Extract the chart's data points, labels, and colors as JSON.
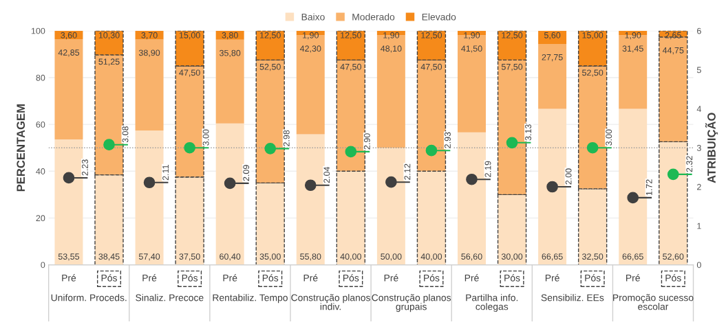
{
  "chart_data": {
    "type": "bar",
    "stacked": true,
    "categories": [
      "Pré",
      "Pós",
      "Pré",
      "Pós",
      "Pré",
      "Pós",
      "Pré",
      "Pós",
      "Pré",
      "Pós",
      "Pré",
      "Pós",
      "Pré",
      "Pós",
      "Pré",
      "Pós"
    ],
    "annotations": [
      "Uniform. Proceds.",
      "Sinaliz. Precoce",
      "Rentabiliz. Tempo",
      "Construção planos indiv.",
      "Construção planos grupais",
      "Partilha info. colegas",
      "Sensibiliz. EEs",
      "Promoção sucesso escolar"
    ],
    "series": [
      {
        "name": "Baixo",
        "color": "#fde0c0",
        "values": [
          53.55,
          38.45,
          57.4,
          37.5,
          60.4,
          35.0,
          55.8,
          40.0,
          50.0,
          40.0,
          56.6,
          30.0,
          66.65,
          32.5,
          66.65,
          52.6
        ],
        "value_labels": [
          "53,55",
          "38,45",
          "57,40",
          "37,50",
          "60,40",
          "35,00",
          "55,80",
          "40,00",
          "50,00",
          "40,00",
          "56,60",
          "30,00",
          "66,65",
          "32,50",
          "66,65",
          "52,60"
        ]
      },
      {
        "name": "Moderado",
        "color": "#f9b26b",
        "values": [
          42.85,
          51.25,
          38.9,
          47.5,
          35.8,
          52.5,
          42.3,
          47.5,
          48.1,
          47.5,
          41.5,
          57.5,
          27.75,
          52.5,
          31.45,
          44.75
        ],
        "value_labels": [
          "42,85",
          "51,25",
          "38,90",
          "47,50",
          "35,80",
          "52,50",
          "42,30",
          "47,50",
          "48,10",
          "47,50",
          "41,50",
          "57,50",
          "27,75",
          "52,50",
          "31,45",
          "44,75"
        ]
      },
      {
        "name": "Elevado",
        "color": "#f58a1a",
        "values": [
          3.6,
          10.3,
          3.7,
          15.0,
          3.8,
          12.5,
          1.9,
          12.5,
          1.9,
          12.5,
          1.9,
          12.5,
          5.6,
          15.0,
          1.9,
          2.65
        ],
        "value_labels": [
          "3,60",
          "10,30",
          "3,70",
          "15,00",
          "3,80",
          "12,50",
          "1,90",
          "12,50",
          "1,90",
          "12,50",
          "1,90",
          "12,50",
          "5,60",
          "15,00",
          "1,90",
          "2,65"
        ]
      },
      {
        "type": "scatter",
        "axis": "y2",
        "color": "#404040",
        "values": [
          2.23,
          null,
          2.11,
          null,
          2.09,
          null,
          2.04,
          null,
          2.12,
          null,
          2.19,
          null,
          2.0,
          null,
          1.72,
          null
        ],
        "value_labels": [
          "2.23",
          null,
          "2.11",
          null,
          "2.09",
          null,
          "2.04",
          null,
          "2.12",
          null,
          "2.19",
          null,
          "2.00",
          null,
          "1.72",
          null
        ]
      },
      {
        "type": "scatter",
        "axis": "y2",
        "color": "#1db954",
        "values": [
          null,
          3.08,
          null,
          3.0,
          null,
          2.98,
          null,
          2.9,
          null,
          2.93,
          null,
          3.13,
          null,
          3.0,
          null,
          2.32
        ],
        "value_labels": [
          null,
          "3.08",
          null,
          "3.00",
          null,
          "2.98",
          null,
          "2.90",
          null,
          "2.93",
          null,
          "3.13",
          null,
          "3.00",
          null,
          "2.32"
        ]
      }
    ],
    "ylim": [
      0,
      100
    ],
    "yticks": [
      0,
      20,
      40,
      60,
      80,
      100
    ],
    "y2lim": [
      0,
      6
    ],
    "y2ticks": [
      0,
      1,
      2,
      3,
      4,
      5,
      6
    ],
    "ylabel": "PERCENTAGEM",
    "y2label": "ATRIBUIÇÃO",
    "ref_lines": [
      {
        "axis": "y2",
        "value": 3,
        "color": "#999999",
        "line_style": "dotted"
      }
    ],
    "marker": "circle",
    "grid": "y",
    "legend": "top"
  }
}
